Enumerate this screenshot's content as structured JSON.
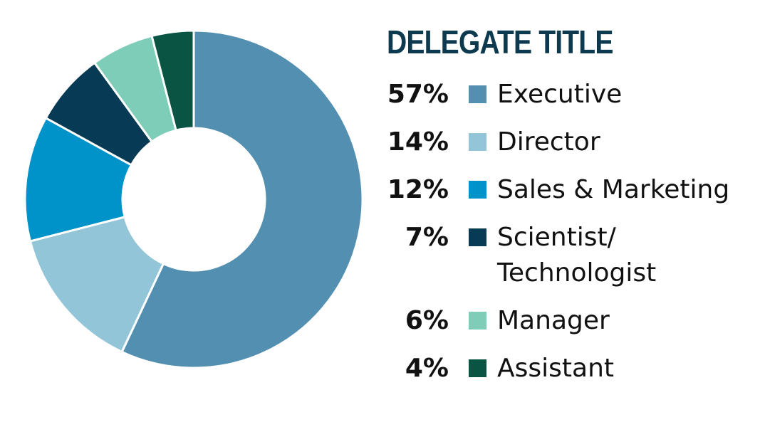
{
  "chart_data": {
    "type": "pie",
    "title": "DELEGATE TITLE",
    "categories": [
      "Executive",
      "Director",
      "Sales & Marketing",
      "Scientist/ Technologist",
      "Manager",
      "Assistant"
    ],
    "values": [
      57,
      14,
      12,
      7,
      6,
      4
    ],
    "value_labels": [
      "57%",
      "14%",
      "12%",
      "7%",
      "6%",
      "4%"
    ],
    "colors": [
      "#528fb0",
      "#93c5d8",
      "#0093c9",
      "#073a54",
      "#7ecdb8",
      "#0a5443"
    ]
  }
}
